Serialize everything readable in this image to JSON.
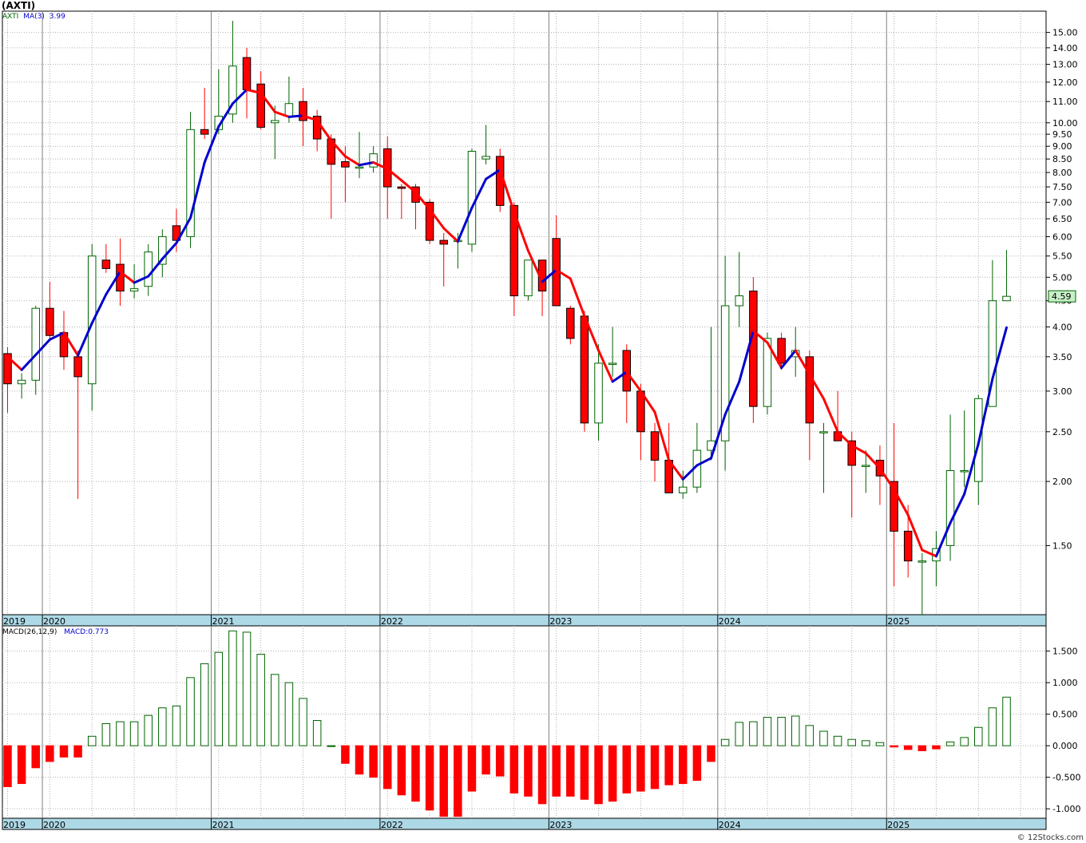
{
  "header": {
    "title": "(AXTI)"
  },
  "legend": {
    "symbol": "AXTI",
    "ma_label": "MA(3)",
    "ma_value": "3.99",
    "macd_label": "MACD(26,12,9)",
    "macd_value": "MACD:0.773"
  },
  "price_tag": "4.59",
  "footer": {
    "credit": "© 12Stocks.com"
  },
  "colors": {
    "up": "#006400",
    "down": "#ff0000",
    "ma_up": "#0000cc",
    "ma_down": "#ff0000",
    "grid": "#b0b0b0",
    "axis_band": "#add8e6"
  },
  "chart_data": [
    {
      "type": "candlestick",
      "title": "(AXTI)",
      "y_scale": "log",
      "ylim": [
        1.1,
        16.5
      ],
      "y_ticks": [
        1.5,
        2.0,
        2.5,
        3.0,
        3.5,
        4.0,
        4.5,
        5.0,
        5.5,
        6.0,
        6.5,
        7.0,
        7.5,
        8.0,
        8.5,
        9.0,
        9.5,
        10.0,
        11.0,
        12.0,
        13.0,
        14.0,
        15.0
      ],
      "y_tick_labels": [
        "1.50",
        "2.00",
        "2.50",
        "3.00",
        "3.50",
        "4.00",
        "4.50",
        "5.00",
        "5.50",
        "6.00",
        "6.50",
        "7.00",
        "7.50",
        "8.00",
        "8.50",
        "9.00",
        "9.50",
        "10.00",
        "11.00",
        "12.00",
        "13.00",
        "14.00",
        "15.00"
      ],
      "x_labels": [
        "2019",
        "2020",
        "2021",
        "2022",
        "2023",
        "2024",
        "2025"
      ],
      "x_label_months": [
        0,
        3,
        15,
        27,
        39,
        51,
        63
      ],
      "note": "monthly candles starting Oct 2019; each entry [open, high, low, close]",
      "candles": [
        [
          3.55,
          3.65,
          2.72,
          3.1
        ],
        [
          3.1,
          3.25,
          2.9,
          3.15
        ],
        [
          3.15,
          4.4,
          2.95,
          4.35
        ],
        [
          4.35,
          4.9,
          3.8,
          3.85
        ],
        [
          3.9,
          4.3,
          3.3,
          3.5
        ],
        [
          3.5,
          3.6,
          1.85,
          3.2
        ],
        [
          3.1,
          5.8,
          2.75,
          5.5
        ],
        [
          5.4,
          5.8,
          5.1,
          5.2
        ],
        [
          5.3,
          5.95,
          4.4,
          4.7
        ],
        [
          4.7,
          5.3,
          4.55,
          4.75
        ],
        [
          4.8,
          5.8,
          4.6,
          5.6
        ],
        [
          5.3,
          6.2,
          5.0,
          6.0
        ],
        [
          6.3,
          6.8,
          5.6,
          5.9
        ],
        [
          6.0,
          10.5,
          5.7,
          9.7
        ],
        [
          9.7,
          11.7,
          9.3,
          9.5
        ],
        [
          9.7,
          12.7,
          9.5,
          10.3
        ],
        [
          10.4,
          15.8,
          10.0,
          12.9
        ],
        [
          13.4,
          14.0,
          10.2,
          11.6
        ],
        [
          11.9,
          12.6,
          9.7,
          9.8
        ],
        [
          10.0,
          10.8,
          8.5,
          10.1
        ],
        [
          10.3,
          12.3,
          10.0,
          10.9
        ],
        [
          11.0,
          11.7,
          9.0,
          10.1
        ],
        [
          10.3,
          10.6,
          8.8,
          9.3
        ],
        [
          9.3,
          9.5,
          6.5,
          8.3
        ],
        [
          8.4,
          9.0,
          7.0,
          8.2
        ],
        [
          8.2,
          9.6,
          7.8,
          8.2
        ],
        [
          8.2,
          9.0,
          8.0,
          8.7
        ],
        [
          8.9,
          9.4,
          6.5,
          7.5
        ],
        [
          7.5,
          7.6,
          6.5,
          7.45
        ],
        [
          7.5,
          7.6,
          6.2,
          7.0
        ],
        [
          7.0,
          7.1,
          5.8,
          5.9
        ],
        [
          5.9,
          6.1,
          4.8,
          5.8
        ],
        [
          5.9,
          6.1,
          5.2,
          5.9
        ],
        [
          5.8,
          8.9,
          5.6,
          8.8
        ],
        [
          8.5,
          9.9,
          8.3,
          8.6
        ],
        [
          8.6,
          8.9,
          6.7,
          6.9
        ],
        [
          6.9,
          7.0,
          4.2,
          4.6
        ],
        [
          4.6,
          5.4,
          4.5,
          5.4
        ],
        [
          5.4,
          5.4,
          4.2,
          4.7
        ],
        [
          5.95,
          6.6,
          4.4,
          4.4
        ],
        [
          4.35,
          4.4,
          3.7,
          3.8
        ],
        [
          4.2,
          4.3,
          2.5,
          2.6
        ],
        [
          2.6,
          3.7,
          2.4,
          3.4
        ],
        [
          3.4,
          4.0,
          3.2,
          3.4
        ],
        [
          3.6,
          3.7,
          2.6,
          3.0
        ],
        [
          3.0,
          3.1,
          2.2,
          2.5
        ],
        [
          2.5,
          2.6,
          2.0,
          2.2
        ],
        [
          2.2,
          2.6,
          1.9,
          1.9
        ],
        [
          1.9,
          2.1,
          1.85,
          1.95
        ],
        [
          1.95,
          2.6,
          1.9,
          2.3
        ],
        [
          2.3,
          4.0,
          2.2,
          2.4
        ],
        [
          2.4,
          5.5,
          2.1,
          4.4
        ],
        [
          4.4,
          5.6,
          4.0,
          4.6
        ],
        [
          4.7,
          5.0,
          2.6,
          2.8
        ],
        [
          2.8,
          3.9,
          2.7,
          3.8
        ],
        [
          3.8,
          3.9,
          3.3,
          3.4
        ],
        [
          3.5,
          4.0,
          3.2,
          3.6
        ],
        [
          3.5,
          3.6,
          2.2,
          2.6
        ],
        [
          2.5,
          2.6,
          1.9,
          2.5
        ],
        [
          2.5,
          3.0,
          2.4,
          2.4
        ],
        [
          2.4,
          2.5,
          1.7,
          2.15
        ],
        [
          2.15,
          2.3,
          1.9,
          2.15
        ],
        [
          2.2,
          2.35,
          1.8,
          2.05
        ],
        [
          2.0,
          2.6,
          1.25,
          1.6
        ],
        [
          1.6,
          1.8,
          1.3,
          1.4
        ],
        [
          1.4,
          1.45,
          1.1,
          1.4
        ],
        [
          1.4,
          1.6,
          1.25,
          1.48
        ],
        [
          1.5,
          2.7,
          1.4,
          2.1
        ],
        [
          2.1,
          2.75,
          1.95,
          2.1
        ],
        [
          2.0,
          2.95,
          1.8,
          2.9
        ],
        [
          2.8,
          5.4,
          2.8,
          4.5
        ],
        [
          4.5,
          5.65,
          4.5,
          4.59
        ]
      ],
      "ma": {
        "name": "MA(3)",
        "values": [
          3.5,
          3.3,
          3.53,
          3.78,
          3.9,
          3.52,
          4.07,
          4.63,
          5.13,
          4.88,
          5.02,
          5.43,
          5.83,
          6.53,
          8.37,
          9.83,
          10.9,
          11.6,
          11.43,
          10.5,
          10.27,
          10.33,
          10.1,
          9.23,
          8.6,
          8.27,
          8.37,
          8.13,
          7.72,
          7.32,
          6.78,
          6.23,
          5.87,
          6.83,
          7.77,
          8.1,
          6.7,
          5.63,
          4.9,
          5.17,
          4.97,
          4.2,
          3.6,
          3.13,
          3.27,
          3.0,
          2.73,
          2.2,
          2.02,
          2.15,
          2.22,
          2.7,
          3.13,
          3.93,
          3.73,
          3.33,
          3.6,
          3.23,
          2.9,
          2.5,
          2.35,
          2.27,
          2.12,
          1.93,
          1.72,
          1.47,
          1.43,
          1.66,
          1.89,
          2.37,
          3.17,
          3.99
        ]
      }
    },
    {
      "type": "bar",
      "title": "MACD(26,12,9)",
      "ylim": [
        -1.15,
        1.9
      ],
      "y_ticks": [
        -1.0,
        -0.5,
        0.0,
        0.5,
        1.0,
        1.5
      ],
      "y_tick_labels": [
        "-1.000",
        "-0.500",
        "0.000",
        "0.500",
        "1.000",
        "1.500"
      ],
      "x_labels": [
        "2019",
        "2020",
        "2021",
        "2022",
        "2023",
        "2024",
        "2025"
      ],
      "values": [
        -0.65,
        -0.6,
        -0.35,
        -0.25,
        -0.18,
        -0.18,
        0.15,
        0.35,
        0.38,
        0.38,
        0.48,
        0.6,
        0.63,
        1.08,
        1.3,
        1.48,
        1.82,
        1.8,
        1.45,
        1.13,
        1.0,
        0.75,
        0.4,
        0.0,
        -0.28,
        -0.45,
        -0.5,
        -0.68,
        -0.78,
        -0.88,
        -1.02,
        -1.12,
        -1.12,
        -0.72,
        -0.45,
        -0.48,
        -0.75,
        -0.8,
        -0.92,
        -0.8,
        -0.8,
        -0.85,
        -0.92,
        -0.88,
        -0.75,
        -0.72,
        -0.68,
        -0.62,
        -0.6,
        -0.55,
        -0.25,
        0.1,
        0.37,
        0.38,
        0.45,
        0.45,
        0.47,
        0.32,
        0.23,
        0.15,
        0.1,
        0.08,
        0.05,
        -0.02,
        -0.06,
        -0.08,
        -0.05,
        0.06,
        0.13,
        0.29,
        0.6,
        0.77
      ]
    }
  ]
}
